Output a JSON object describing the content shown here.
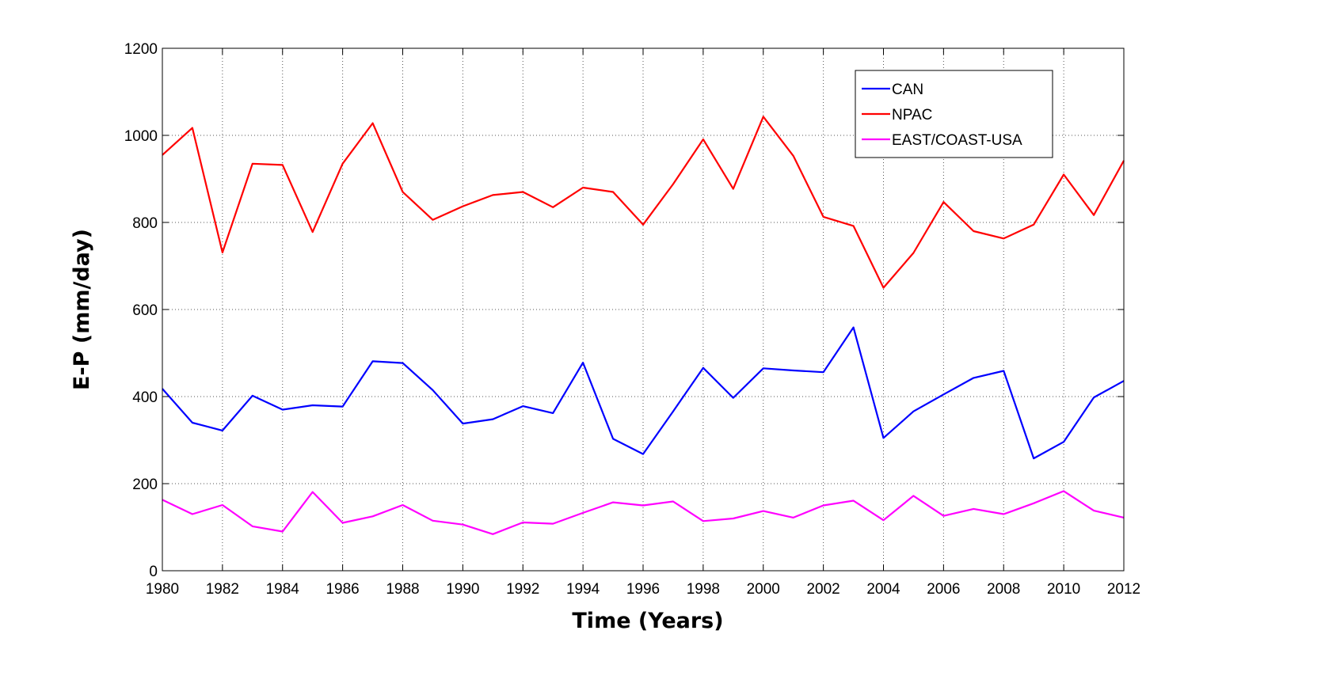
{
  "chart_data": {
    "type": "line",
    "xlabel": "Time (Years)",
    "ylabel": "E-P (mm/day)",
    "xlim": [
      1980,
      2012
    ],
    "ylim": [
      0,
      1200
    ],
    "xticks": [
      1980,
      1982,
      1984,
      1986,
      1988,
      1990,
      1992,
      1994,
      1996,
      1998,
      2000,
      2002,
      2004,
      2006,
      2008,
      2010,
      2012
    ],
    "yticks": [
      0,
      200,
      400,
      600,
      800,
      1000,
      1200
    ],
    "grid": true,
    "legend_position": "top-right",
    "x": [
      1980,
      1981,
      1982,
      1983,
      1984,
      1985,
      1986,
      1987,
      1988,
      1989,
      1990,
      1991,
      1992,
      1993,
      1994,
      1995,
      1996,
      1997,
      1998,
      1999,
      2000,
      2001,
      2002,
      2003,
      2004,
      2005,
      2006,
      2007,
      2008,
      2009,
      2010,
      2011,
      2012
    ],
    "series": [
      {
        "name": "CAN",
        "color": "#0000ff",
        "values": [
          418,
          340,
          322,
          402,
          370,
          380,
          377,
          481,
          477,
          415,
          338,
          348,
          378,
          362,
          478,
          303,
          268,
          366,
          466,
          397,
          465,
          460,
          456,
          559,
          305,
          366,
          405,
          443,
          459,
          258,
          296,
          398,
          436
        ]
      },
      {
        "name": "NPAC",
        "color": "#ff0000",
        "values": [
          955,
          1017,
          731,
          935,
          932,
          778,
          935,
          1028,
          870,
          806,
          837,
          863,
          870,
          835,
          880,
          870,
          795,
          888,
          991,
          877,
          1043,
          953,
          813,
          792,
          650,
          730,
          847,
          780,
          763,
          795,
          910,
          817,
          942
        ]
      },
      {
        "name": "EAST/COAST-USA",
        "color": "#ff00ff",
        "values": [
          163,
          130,
          151,
          102,
          90,
          181,
          110,
          125,
          151,
          115,
          106,
          84,
          111,
          108,
          133,
          157,
          150,
          159,
          114,
          120,
          137,
          122,
          150,
          161,
          116,
          172,
          126,
          142,
          130,
          155,
          183,
          138,
          122
        ]
      }
    ]
  }
}
